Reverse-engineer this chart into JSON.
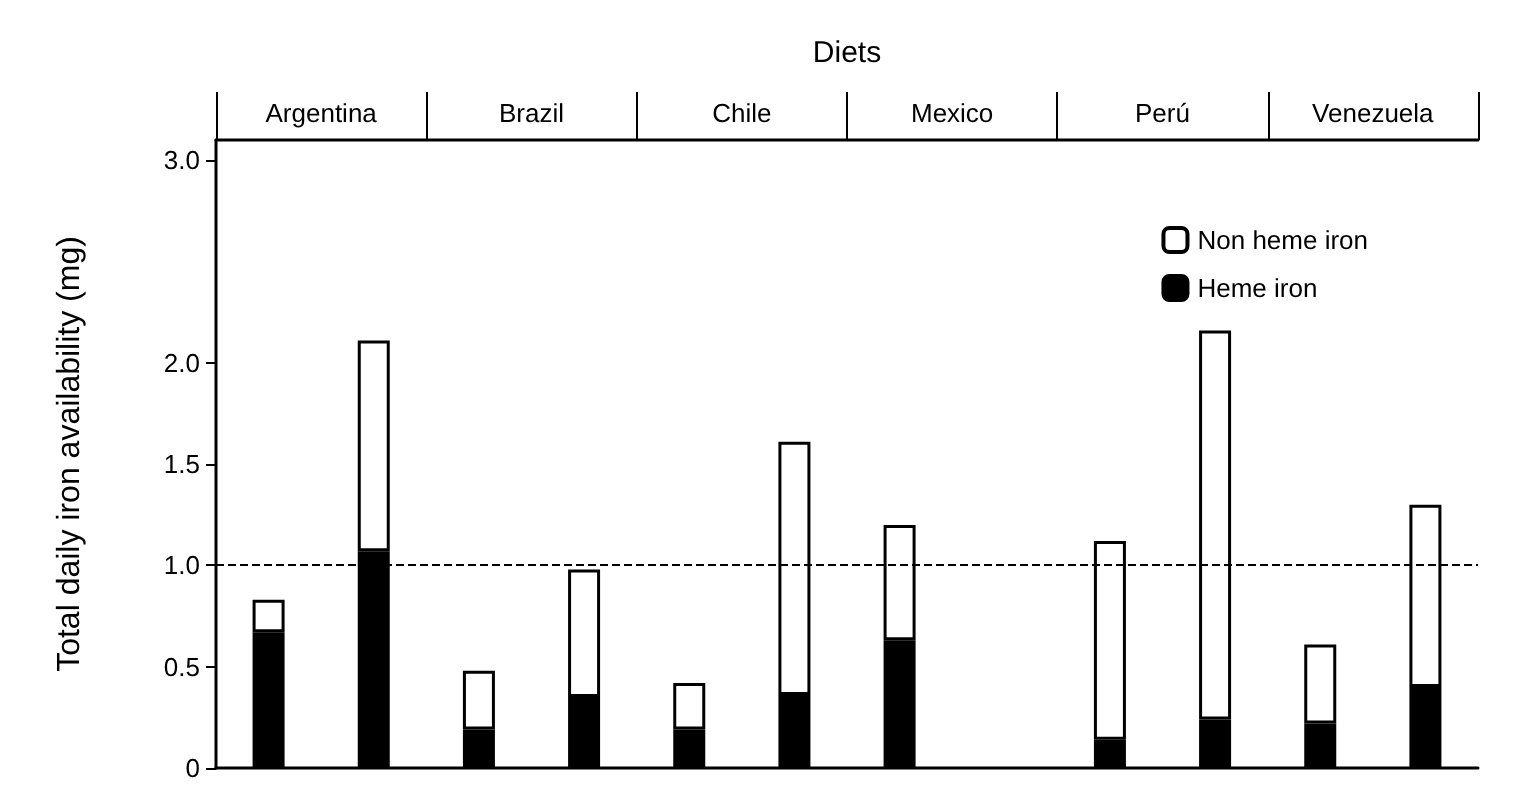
{
  "chart_data": {
    "type": "bar",
    "stacked": true,
    "xlabel": "Diets",
    "ylabel": "Total daily iron availability (mg)",
    "annotations": [
      "Argentina",
      "Brazil",
      "Chile",
      "Mexico",
      "Perú",
      "Venezuela"
    ],
    "categories": [
      null,
      null,
      null,
      null,
      null,
      null,
      null,
      null,
      null,
      null,
      null,
      null
    ],
    "series": [
      {
        "name": "Heme iron",
        "color": "#000000",
        "values": [
          0.67,
          1.07,
          0.19,
          0.35,
          0.19,
          0.36,
          0.63,
          null,
          0.14,
          0.24,
          0.22,
          0.4
        ]
      },
      {
        "name": "Non heme iron",
        "color": "#ffffff",
        "values": [
          0.16,
          1.04,
          0.29,
          0.63,
          0.23,
          1.25,
          0.57,
          null,
          0.98,
          1.92,
          0.39,
          0.9
        ]
      }
    ],
    "ylim": [
      0,
      3.1
    ],
    "yticks": [
      0,
      0.5,
      {
        "value": 1,
        "label": "1.0"
      },
      1.5,
      {
        "value": 2,
        "label": "2.0"
      },
      {
        "value": 3,
        "label": "3.0"
      }
    ],
    "ref_lines": [
      {
        "axis": "y",
        "value": 1,
        "line_style": "dashed",
        "color": "#000000"
      }
    ],
    "grid": false,
    "legend": "top right"
  }
}
